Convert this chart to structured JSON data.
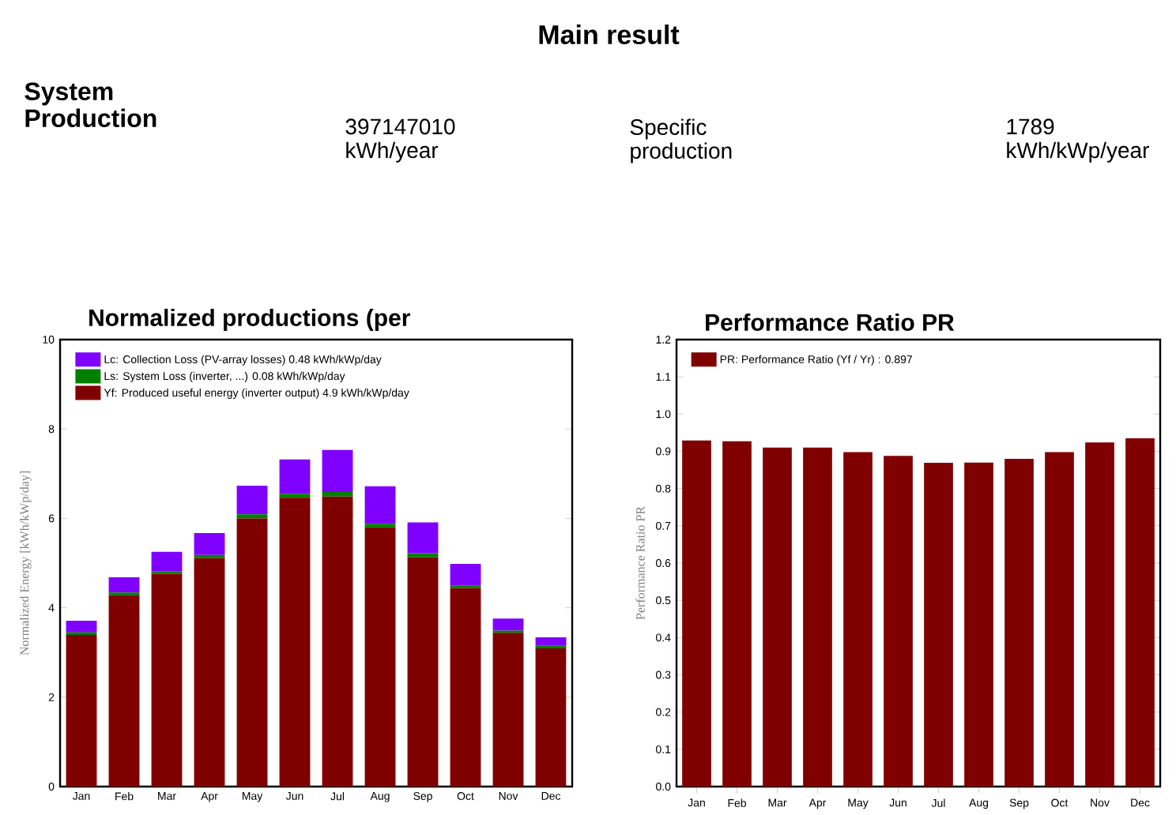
{
  "chart_data": [
    {
      "type": "other",
      "title": "Main result",
      "annotations": [
        "System Production",
        "397147010 kWh/year",
        "Specific production",
        "1789 kWh/kWp/year"
      ]
    },
    {
      "type": "bar",
      "title": "Normalized productions (per",
      "ylabel": "Normalized Energy [kWh/kWp/day]",
      "stacked": true,
      "legend": "top left",
      "categories": [
        "Jan",
        "Feb",
        "Mar",
        "Apr",
        "May",
        "Jun",
        "Jul",
        "Aug",
        "Sep",
        "Oct",
        "Nov",
        "Dec"
      ],
      "ylim": [
        0,
        10
      ],
      "yticks": [
        0,
        2,
        4,
        6,
        8,
        10
      ],
      "series": [
        {
          "name": "Yf: Produced useful energy (inverter output) 4.9 kWh/kWp/day",
          "color": "#800000",
          "values": [
            3.39,
            4.28,
            4.76,
            5.11,
            6.0,
            6.46,
            6.49,
            5.8,
            5.13,
            4.44,
            3.44,
            3.09
          ]
        },
        {
          "name": "Ls: System Loss (inverter, ...) 0.08 kWh/kWp/day",
          "color": "#008000",
          "values": [
            0.06,
            0.06,
            0.06,
            0.07,
            0.09,
            0.09,
            0.1,
            0.08,
            0.09,
            0.05,
            0.05,
            0.06
          ]
        },
        {
          "name": "Lc: Collection Loss (PV-array losses) 0.48 kWh/kWp/day",
          "color": "#8000ff",
          "values": [
            0.26,
            0.34,
            0.43,
            0.49,
            0.64,
            0.77,
            0.94,
            0.84,
            0.69,
            0.49,
            0.27,
            0.19
          ]
        }
      ]
    },
    {
      "type": "bar",
      "title": "Performance Ratio PR",
      "ylabel": "Performance Ratio PR",
      "legend": "top left",
      "categories": [
        "Jan",
        "Feb",
        "Mar",
        "Apr",
        "May",
        "Jun",
        "Jul",
        "Aug",
        "Sep",
        "Oct",
        "Nov",
        "Dec"
      ],
      "ylim": [
        0,
        1.2
      ],
      "yticks": [
        {
          "value": 0,
          "label": "0.0"
        },
        0.1,
        0.2,
        0.3,
        0.4,
        0.5,
        0.6,
        0.7,
        0.8,
        0.9,
        {
          "value": 1,
          "label": "1.0"
        },
        1.1,
        1.2
      ],
      "series": [
        {
          "name": "PR: Performance Ratio (Yf / Yr) : 0.897",
          "color": "#800000",
          "values": [
            0.929,
            0.927,
            0.91,
            0.91,
            0.898,
            0.888,
            0.869,
            0.87,
            0.88,
            0.898,
            0.924,
            0.935
          ]
        }
      ]
    }
  ]
}
